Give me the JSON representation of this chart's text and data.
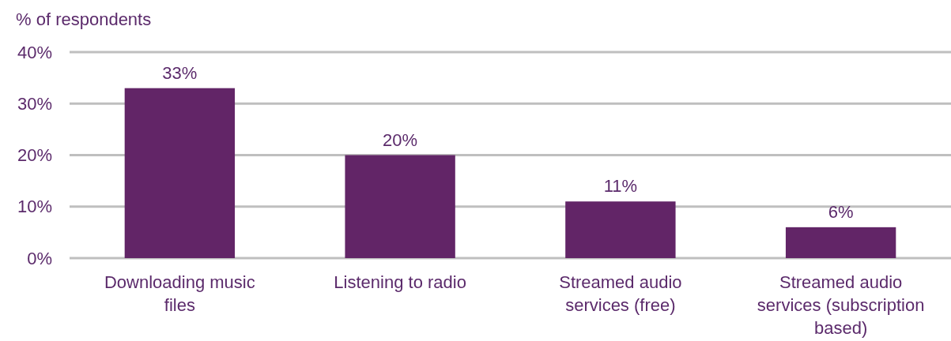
{
  "chart_data": {
    "type": "bar",
    "ylabel": "% of respondents",
    "categories": [
      "Downloading music files",
      "Listening to radio",
      "Streamed audio services (free)",
      "Streamed audio services (subscription based)"
    ],
    "values": [
      33,
      20,
      11,
      6
    ],
    "value_labels": [
      "33%",
      "20%",
      "11%",
      "6%"
    ],
    "color": "#622567",
    "ylim": [
      0,
      40
    ],
    "yticks": [
      {
        "value": 0,
        "label": "0%"
      },
      {
        "value": 10,
        "label": "10%"
      },
      {
        "value": 20,
        "label": "20%"
      },
      {
        "value": 30,
        "label": "30%"
      },
      {
        "value": 40,
        "label": "40%"
      }
    ],
    "grid": "y"
  }
}
